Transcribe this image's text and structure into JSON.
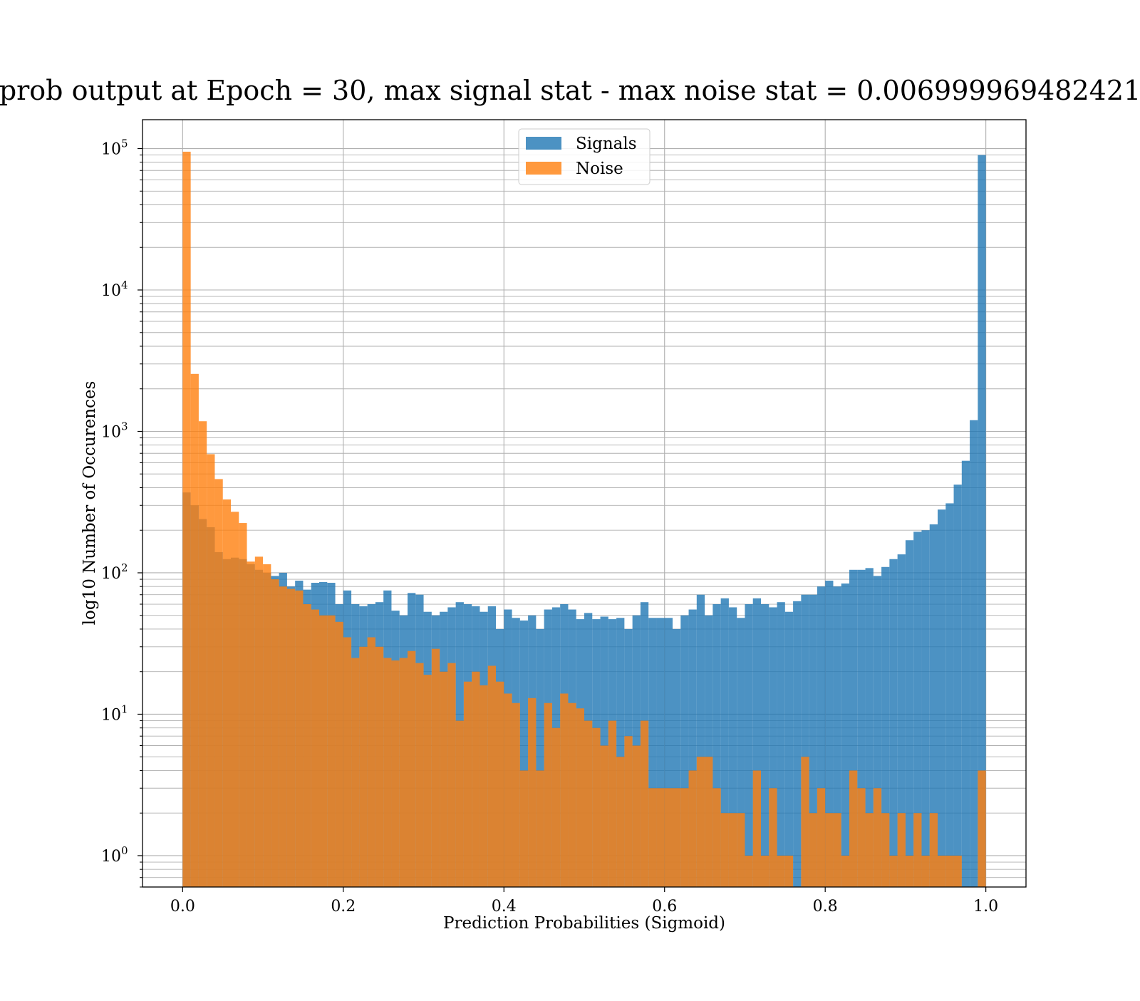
{
  "chart_data": {
    "type": "bar",
    "title": "prob output at Epoch = 30, max signal stat - max noise stat = 0.006999969482421",
    "xlabel": "Prediction Probabilities (Sigmoid)",
    "ylabel": "log10 Number of Occurences",
    "xlim": [
      -0.05,
      1.05
    ],
    "ylim": [
      0.6,
      160000
    ],
    "yscale": "log",
    "grid": true,
    "legend_position": "top-center",
    "bin_width": 0.01,
    "x_ticks": [
      {
        "value": 0.0,
        "label": "0.0"
      },
      {
        "value": 0.2,
        "label": "0.2"
      },
      {
        "value": 0.4,
        "label": "0.4"
      },
      {
        "value": 0.6,
        "label": "0.6"
      },
      {
        "value": 0.8,
        "label": "0.8"
      },
      {
        "value": 1.0,
        "label": "1.0"
      }
    ],
    "y_ticks": [
      {
        "value": 1,
        "base": "10",
        "exp": "0"
      },
      {
        "value": 10,
        "base": "10",
        "exp": "1"
      },
      {
        "value": 100,
        "base": "10",
        "exp": "2"
      },
      {
        "value": 1000,
        "base": "10",
        "exp": "3"
      },
      {
        "value": 10000,
        "base": "10",
        "exp": "4"
      },
      {
        "value": 100000,
        "base": "10",
        "exp": "5"
      }
    ],
    "series": [
      {
        "name": "Signals",
        "color": "#1f77b4",
        "values": [
          370,
          300,
          240,
          210,
          140,
          125,
          128,
          125,
          115,
          105,
          100,
          95,
          100,
          80,
          88,
          76,
          85,
          86,
          85,
          60,
          75,
          60,
          58,
          60,
          62,
          75,
          54,
          50,
          72,
          70,
          53,
          50,
          53,
          57,
          62,
          60,
          58,
          53,
          58,
          40,
          55,
          48,
          46,
          50,
          40,
          55,
          57,
          60,
          55,
          47,
          52,
          47,
          49,
          47,
          48,
          40,
          50,
          62,
          48,
          48,
          48,
          40,
          50,
          55,
          70,
          50,
          60,
          66,
          57,
          48,
          60,
          66,
          60,
          57,
          62,
          53,
          63,
          70,
          70,
          80,
          88,
          80,
          84,
          105,
          105,
          108,
          95,
          110,
          125,
          135,
          170,
          195,
          200,
          220,
          280,
          310,
          420,
          620,
          1200,
          90000
        ]
      },
      {
        "name": "Noise",
        "color": "#ff7f0e",
        "values": [
          95000,
          2550,
          1180,
          690,
          460,
          330,
          270,
          225,
          120,
          130,
          115,
          90,
          80,
          77,
          75,
          60,
          55,
          50,
          50,
          45,
          35,
          25,
          30,
          35,
          30,
          25,
          24,
          25,
          28,
          23,
          19,
          29,
          20,
          23,
          9,
          17,
          20,
          16,
          22,
          17,
          14,
          12,
          4,
          13,
          4,
          12,
          8,
          14,
          12,
          11,
          9,
          8,
          6,
          9,
          5,
          7,
          6,
          9,
          3,
          3,
          3,
          3,
          3,
          4,
          5,
          5,
          3,
          2,
          2,
          2,
          1,
          4,
          1,
          3,
          1,
          1,
          0,
          5,
          2,
          3,
          2,
          2,
          1,
          4,
          3,
          2,
          3,
          2,
          1,
          2,
          1,
          2,
          1,
          2,
          1,
          1,
          1,
          0,
          0,
          4
        ]
      }
    ],
    "legend": [
      {
        "name": "Signals",
        "color": "#1f77b4"
      },
      {
        "name": "Noise",
        "color": "#ff7f0e"
      }
    ]
  }
}
